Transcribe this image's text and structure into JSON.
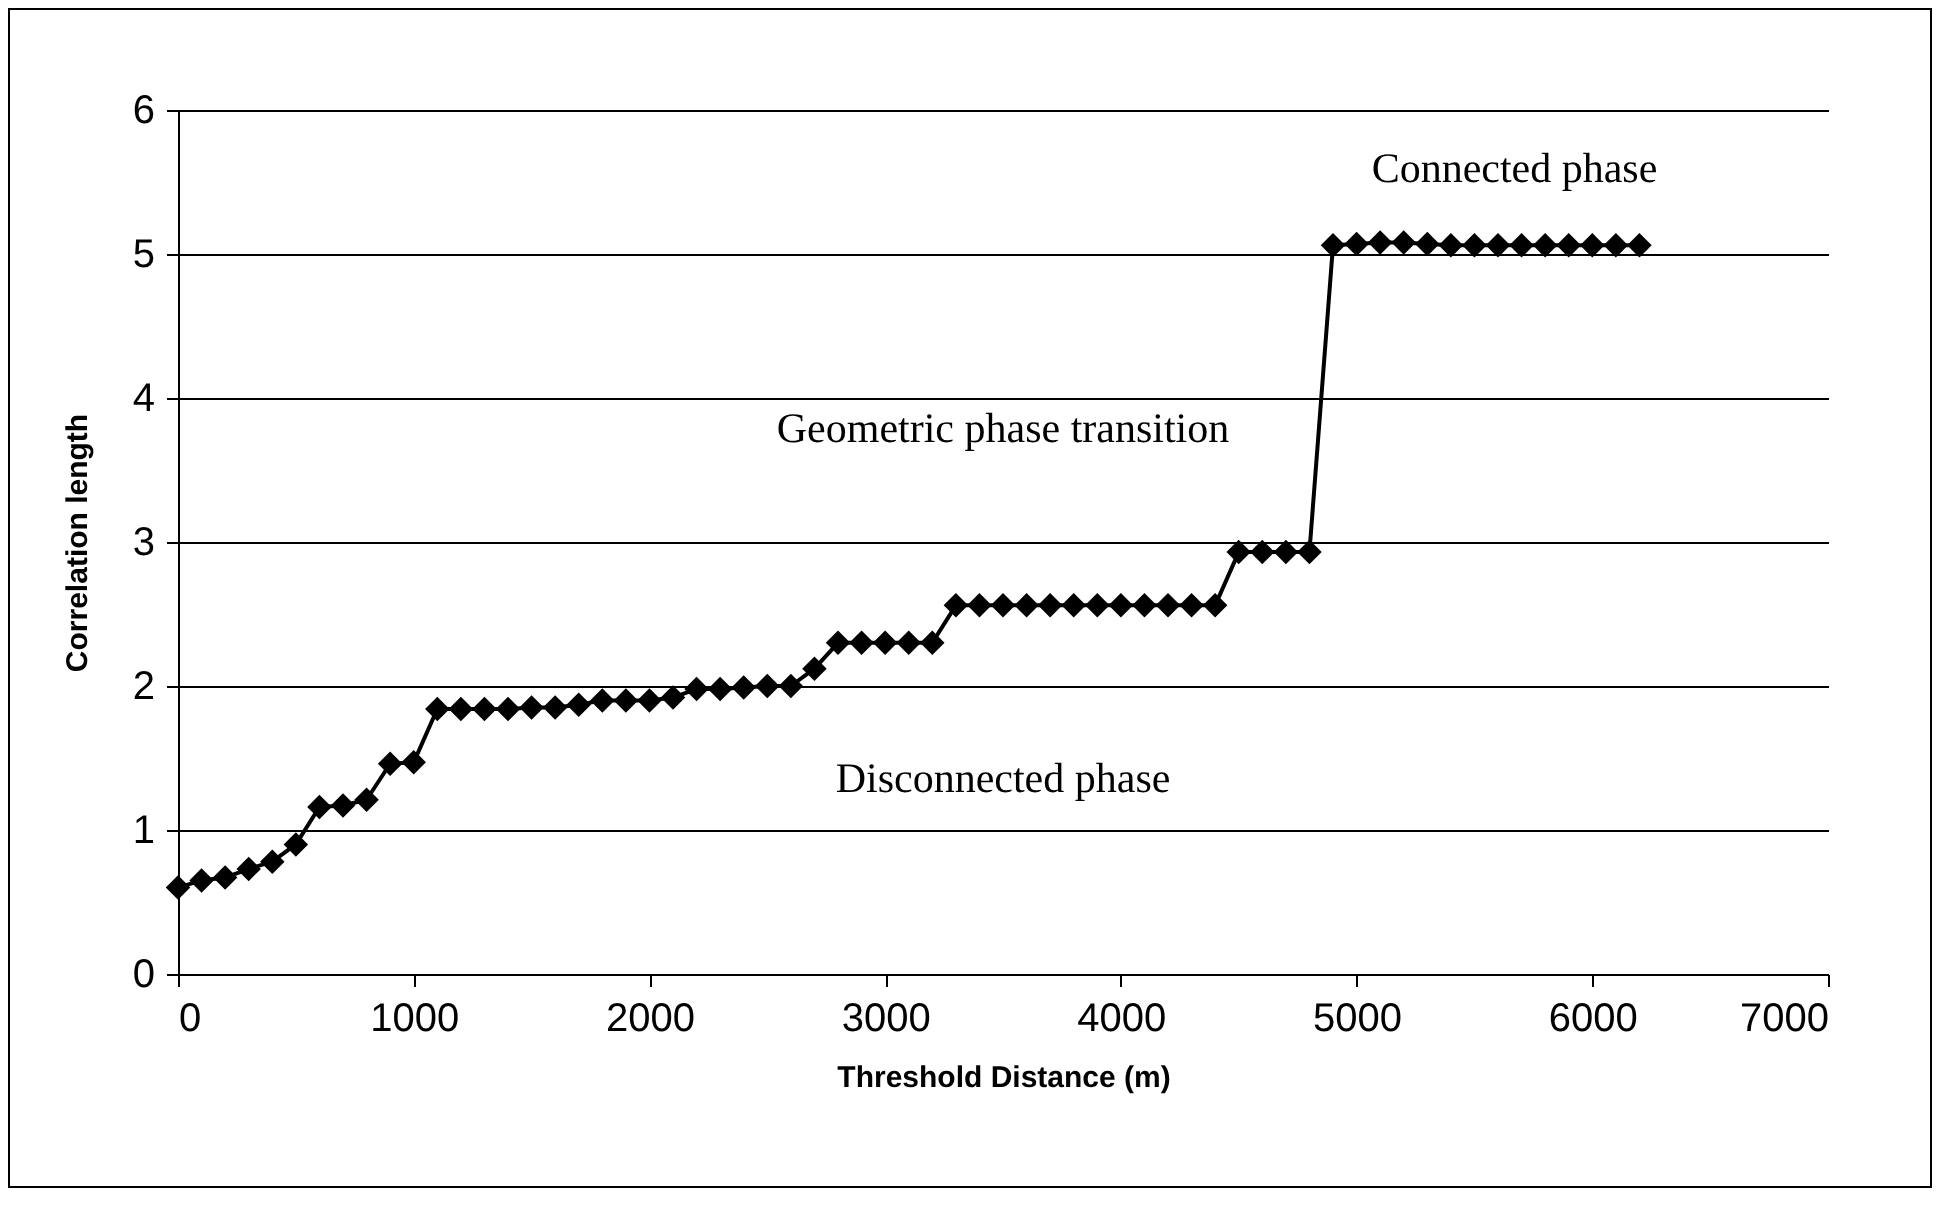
{
  "chart_data": {
    "type": "line",
    "xlabel": "Threshold Distance (m)",
    "ylabel": "Correlation length",
    "x": [
      0,
      100,
      200,
      300,
      400,
      500,
      600,
      700,
      800,
      900,
      1000,
      1100,
      1200,
      1300,
      1400,
      1500,
      1600,
      1700,
      1800,
      1900,
      2000,
      2100,
      2200,
      2300,
      2400,
      2500,
      2600,
      2700,
      2800,
      2900,
      3000,
      3100,
      3200,
      3300,
      3400,
      3500,
      3600,
      3700,
      3800,
      3900,
      4000,
      4100,
      4200,
      4300,
      4400,
      4500,
      4600,
      4700,
      4800,
      4900,
      5000,
      5100,
      5200,
      5300,
      5400,
      5500,
      5600,
      5700,
      5800,
      5900,
      6000,
      6100,
      6200
    ],
    "series": [
      {
        "color": "#000000",
        "values": [
          0.6,
          0.65,
          0.67,
          0.73,
          0.78,
          0.9,
          1.16,
          1.17,
          1.21,
          1.46,
          1.47,
          1.84,
          1.84,
          1.84,
          1.84,
          1.85,
          1.85,
          1.87,
          1.9,
          1.9,
          1.9,
          1.92,
          1.98,
          1.98,
          1.99,
          2.0,
          2.0,
          2.12,
          2.3,
          2.3,
          2.3,
          2.3,
          2.3,
          2.56,
          2.56,
          2.56,
          2.56,
          2.56,
          2.56,
          2.56,
          2.56,
          2.56,
          2.56,
          2.56,
          2.56,
          2.93,
          2.93,
          2.93,
          2.93,
          5.06,
          5.07,
          5.08,
          5.08,
          5.07,
          5.06,
          5.06,
          5.06,
          5.06,
          5.06,
          5.06,
          5.06,
          5.06,
          5.06
        ]
      }
    ],
    "xlim": [
      0,
      7000
    ],
    "xticks": [
      0,
      1000,
      2000,
      3000,
      4000,
      5000,
      6000,
      7000
    ],
    "ylim": [
      0,
      6
    ],
    "yticks": [
      0,
      1,
      2,
      3,
      4,
      5,
      6
    ],
    "grid": "y",
    "marker": "diamond",
    "line_style": "solid",
    "annotations": [
      "Connected phase",
      "Geometric phase transition",
      "Disconnected phase"
    ]
  }
}
